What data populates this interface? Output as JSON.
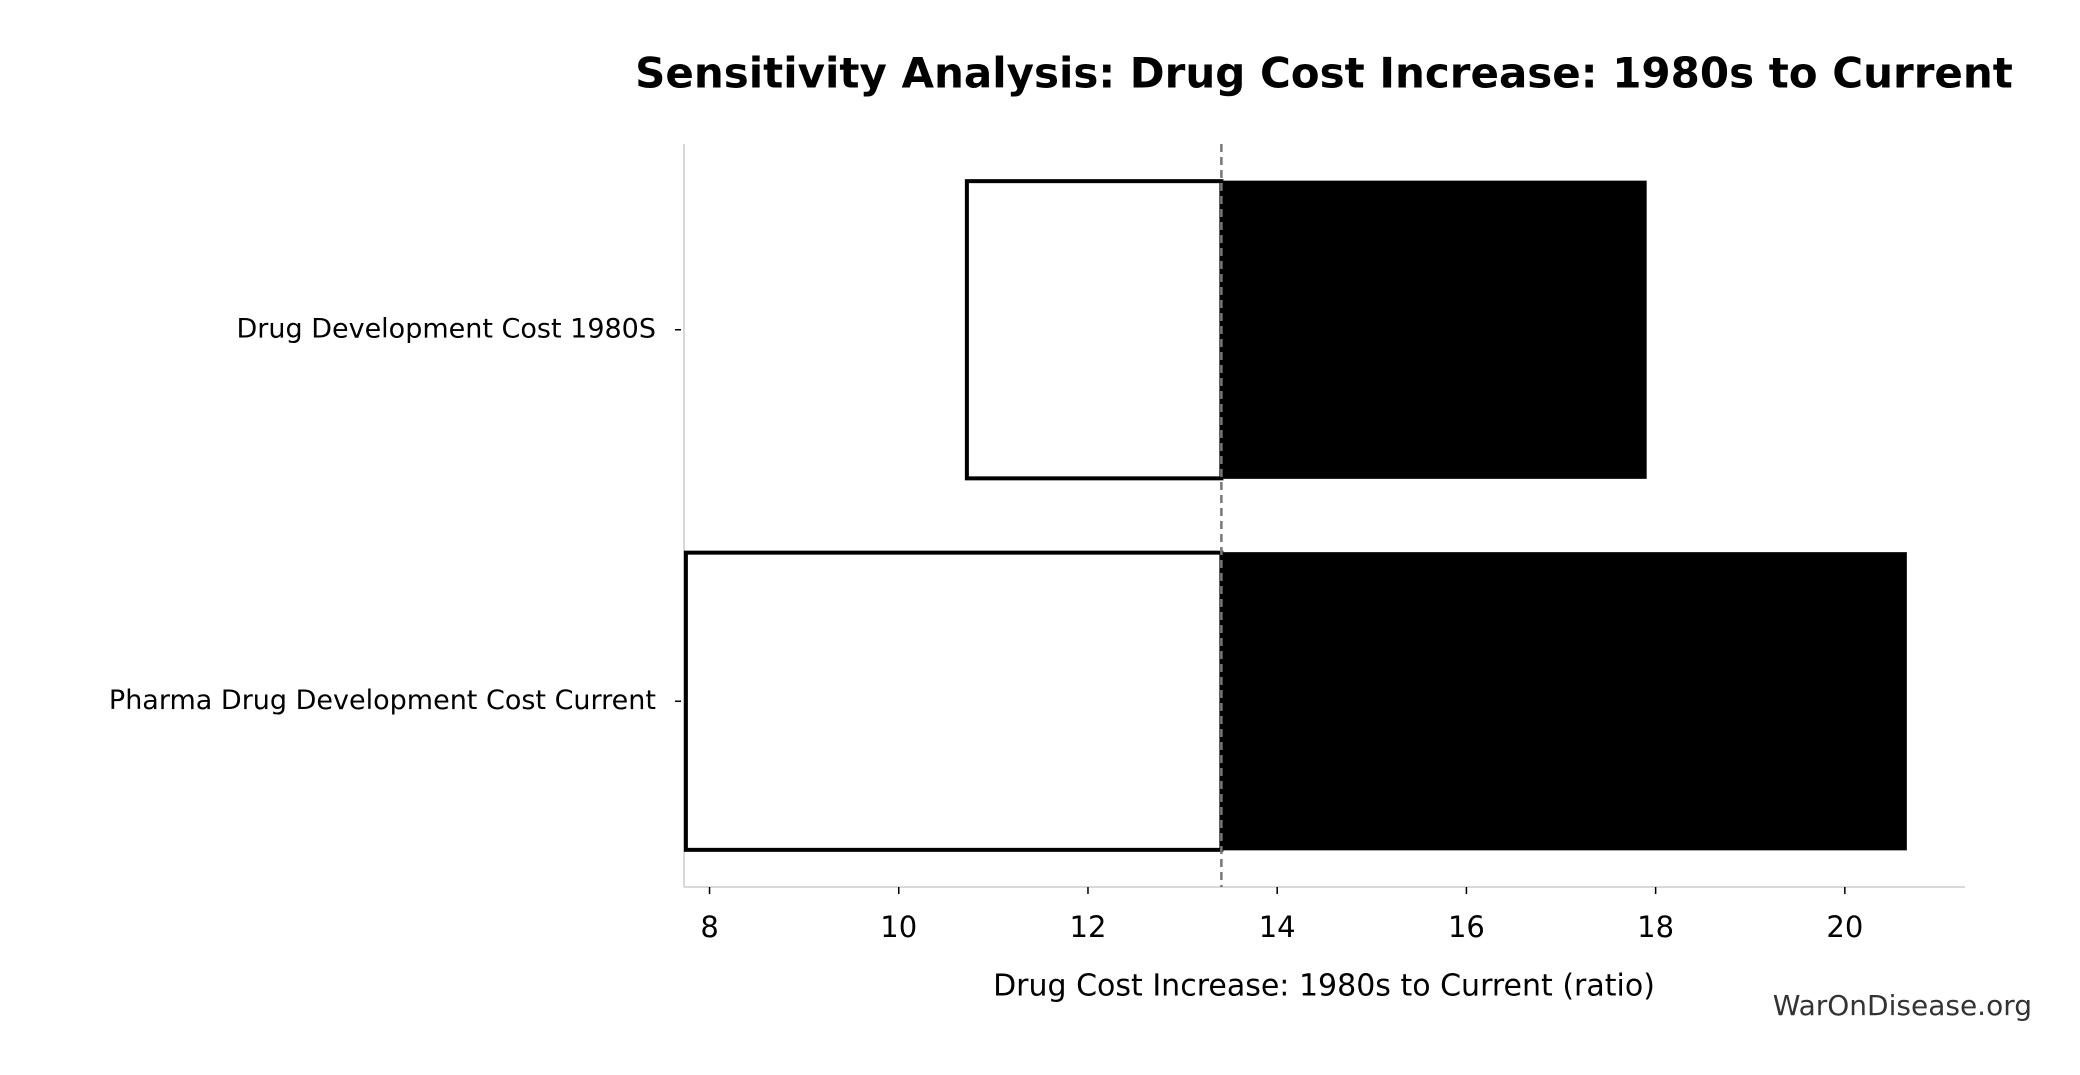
{
  "chart_data": {
    "type": "tornado",
    "title": "Sensitivity Analysis: Drug Cost Increase: 1980s to Current",
    "xlabel": "Drug Cost Increase: 1980s to Current (ratio)",
    "watermark": "WarOnDisease.org",
    "categories": [
      "Drug Development Cost 1980S",
      "Pharma Drug Development Cost Current"
    ],
    "baseline": 13.41,
    "low_values": [
      10.72,
      7.75
    ],
    "high_values": [
      17.9,
      20.65
    ],
    "low_color": "#ffffff",
    "high_color": "#000000",
    "xlim": [
      7.73,
      21.27
    ],
    "xticks": [
      8,
      10,
      12,
      14,
      16,
      18,
      20
    ]
  }
}
